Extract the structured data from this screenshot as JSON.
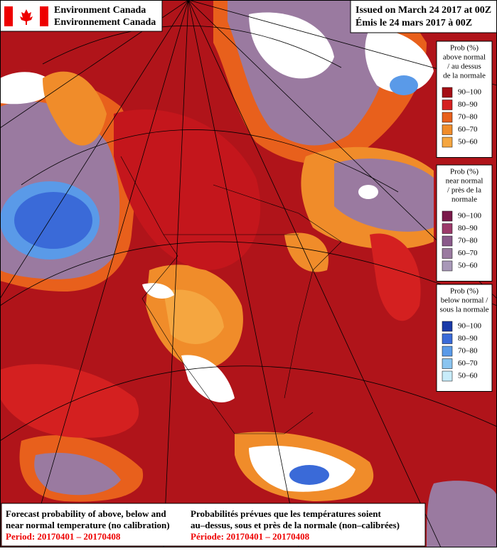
{
  "header": {
    "agency_en": "Environment Canada",
    "agency_fr": "Environnement Canada"
  },
  "issued": {
    "en": "Issued on March 24 2017 at 00Z",
    "fr": "Émis le 24 mars 2017 à 00Z"
  },
  "legends": [
    {
      "title": [
        "Prob (%)",
        "above normal",
        "/ au dessus",
        "de la normale"
      ],
      "items": [
        {
          "label": "90–100",
          "color": "#a50f15"
        },
        {
          "label": "80–90",
          "color": "#d42020"
        },
        {
          "label": "70–80",
          "color": "#e8601c"
        },
        {
          "label": "60–70",
          "color": "#f08c2a"
        },
        {
          "label": "50–60",
          "color": "#f5a640"
        }
      ]
    },
    {
      "title": [
        "Prob (%)",
        "near normal",
        "/ près de la",
        "normale"
      ],
      "items": [
        {
          "label": "90–100",
          "color": "#7a1a4a"
        },
        {
          "label": "80–90",
          "color": "#9c3a6a"
        },
        {
          "label": "70–80",
          "color": "#8a5a8a"
        },
        {
          "label": "60–70",
          "color": "#9a7aa0"
        },
        {
          "label": "50–60",
          "color": "#a898b8"
        }
      ]
    },
    {
      "title": [
        "Prob (%)",
        "below normal /",
        "sous la normale"
      ],
      "items": [
        {
          "label": "90–100",
          "color": "#1a3aa8"
        },
        {
          "label": "80–90",
          "color": "#3a6ad8"
        },
        {
          "label": "70–80",
          "color": "#5a9ae8"
        },
        {
          "label": "60–70",
          "color": "#8ac4f0"
        },
        {
          "label": "50–60",
          "color": "#c8ecfa"
        }
      ]
    }
  ],
  "footer": {
    "en": [
      "Forecast probability of above, below and",
      "near normal temperature (no calibration)"
    ],
    "en_period": "Period: 20170401 – 20170408",
    "fr": [
      "Probabilités prévues que les températures soient",
      "au–dessus, sous et près de la normale (non–calibrées)"
    ],
    "fr_period": "Période: 20170401 – 20170408"
  }
}
